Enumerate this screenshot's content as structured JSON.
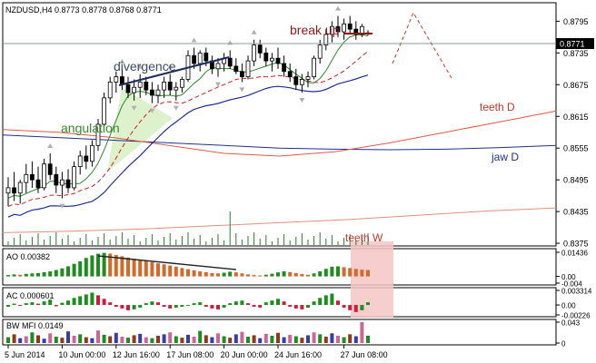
{
  "chart_data": [
    {
      "type": "candlestick",
      "panel": "price",
      "title": "NZDUSD,H4",
      "ohlc_header": [
        "0.8773",
        "0.8778",
        "0.8768",
        "0.8771"
      ],
      "current_price": "0.8771",
      "ylim": [
        0.837,
        0.883
      ],
      "y_ticks": [
        "0.8795",
        "0.8735",
        "0.8675",
        "0.8615",
        "0.8555",
        "0.8495",
        "0.8435",
        "0.8375"
      ],
      "annotations": [
        {
          "text": "break up",
          "color": "#8b1a1a"
        },
        {
          "text": "divergence",
          "color": "#3b4a6b"
        },
        {
          "text": "angulation",
          "color": "#3a8a2a"
        },
        {
          "text": "teeth D",
          "color": "#c0392b"
        },
        {
          "text": "jaw D",
          "color": "#1f2f8f"
        },
        {
          "text": "teeth W",
          "color": "#c0392b"
        }
      ],
      "candles": [
        {
          "o": 0.847,
          "h": 0.85,
          "l": 0.8445,
          "c": 0.848
        },
        {
          "o": 0.848,
          "h": 0.851,
          "l": 0.8455,
          "c": 0.847
        },
        {
          "o": 0.847,
          "h": 0.8495,
          "l": 0.845,
          "c": 0.849
        },
        {
          "o": 0.849,
          "h": 0.8525,
          "l": 0.847,
          "c": 0.8505
        },
        {
          "o": 0.8505,
          "h": 0.853,
          "l": 0.848,
          "c": 0.8495
        },
        {
          "o": 0.8495,
          "h": 0.852,
          "l": 0.847,
          "c": 0.848
        },
        {
          "o": 0.848,
          "h": 0.8535,
          "l": 0.8475,
          "c": 0.8525
        },
        {
          "o": 0.8525,
          "h": 0.8545,
          "l": 0.8495,
          "c": 0.8505
        },
        {
          "o": 0.8505,
          "h": 0.852,
          "l": 0.847,
          "c": 0.8485
        },
        {
          "o": 0.8485,
          "h": 0.851,
          "l": 0.846,
          "c": 0.8495
        },
        {
          "o": 0.8495,
          "h": 0.8515,
          "l": 0.847,
          "c": 0.848
        },
        {
          "o": 0.848,
          "h": 0.853,
          "l": 0.8475,
          "c": 0.852
        },
        {
          "o": 0.852,
          "h": 0.855,
          "l": 0.8505,
          "c": 0.854
        },
        {
          "o": 0.854,
          "h": 0.856,
          "l": 0.8515,
          "c": 0.853
        },
        {
          "o": 0.853,
          "h": 0.857,
          "l": 0.852,
          "c": 0.856
        },
        {
          "o": 0.856,
          "h": 0.861,
          "l": 0.855,
          "c": 0.86
        },
        {
          "o": 0.86,
          "h": 0.866,
          "l": 0.8595,
          "c": 0.865
        },
        {
          "o": 0.865,
          "h": 0.869,
          "l": 0.864,
          "c": 0.868
        },
        {
          "o": 0.868,
          "h": 0.87,
          "l": 0.866,
          "c": 0.869
        },
        {
          "o": 0.869,
          "h": 0.8705,
          "l": 0.8665,
          "c": 0.8675
        },
        {
          "o": 0.8675,
          "h": 0.869,
          "l": 0.865,
          "c": 0.866
        },
        {
          "o": 0.866,
          "h": 0.8685,
          "l": 0.8645,
          "c": 0.867
        },
        {
          "o": 0.867,
          "h": 0.8695,
          "l": 0.865,
          "c": 0.868
        },
        {
          "o": 0.868,
          "h": 0.869,
          "l": 0.8655,
          "c": 0.8665
        },
        {
          "o": 0.8665,
          "h": 0.868,
          "l": 0.864,
          "c": 0.8655
        },
        {
          "o": 0.8655,
          "h": 0.8675,
          "l": 0.864,
          "c": 0.8665
        },
        {
          "o": 0.8665,
          "h": 0.869,
          "l": 0.865,
          "c": 0.868
        },
        {
          "o": 0.868,
          "h": 0.8695,
          "l": 0.8655,
          "c": 0.8665
        },
        {
          "o": 0.8665,
          "h": 0.868,
          "l": 0.8645,
          "c": 0.867
        },
        {
          "o": 0.867,
          "h": 0.869,
          "l": 0.866,
          "c": 0.8685
        },
        {
          "o": 0.8685,
          "h": 0.874,
          "l": 0.868,
          "c": 0.873
        },
        {
          "o": 0.873,
          "h": 0.8745,
          "l": 0.8705,
          "c": 0.8715
        },
        {
          "o": 0.8715,
          "h": 0.874,
          "l": 0.87,
          "c": 0.8735
        },
        {
          "o": 0.8735,
          "h": 0.8745,
          "l": 0.871,
          "c": 0.872
        },
        {
          "o": 0.872,
          "h": 0.873,
          "l": 0.8695,
          "c": 0.8705
        },
        {
          "o": 0.8705,
          "h": 0.8725,
          "l": 0.869,
          "c": 0.8715
        },
        {
          "o": 0.8715,
          "h": 0.8735,
          "l": 0.87,
          "c": 0.8725
        },
        {
          "o": 0.8725,
          "h": 0.874,
          "l": 0.8705,
          "c": 0.871
        },
        {
          "o": 0.871,
          "h": 0.8725,
          "l": 0.8695,
          "c": 0.87
        },
        {
          "o": 0.87,
          "h": 0.8715,
          "l": 0.868,
          "c": 0.869
        },
        {
          "o": 0.869,
          "h": 0.873,
          "l": 0.8685,
          "c": 0.872
        },
        {
          "o": 0.872,
          "h": 0.876,
          "l": 0.871,
          "c": 0.875
        },
        {
          "o": 0.875,
          "h": 0.876,
          "l": 0.8725,
          "c": 0.8735
        },
        {
          "o": 0.8735,
          "h": 0.8745,
          "l": 0.871,
          "c": 0.872
        },
        {
          "o": 0.872,
          "h": 0.8735,
          "l": 0.87,
          "c": 0.8725
        },
        {
          "o": 0.8725,
          "h": 0.8745,
          "l": 0.8705,
          "c": 0.8715
        },
        {
          "o": 0.8715,
          "h": 0.873,
          "l": 0.869,
          "c": 0.87
        },
        {
          "o": 0.87,
          "h": 0.8715,
          "l": 0.868,
          "c": 0.869
        },
        {
          "o": 0.869,
          "h": 0.8705,
          "l": 0.8665,
          "c": 0.8675
        },
        {
          "o": 0.8675,
          "h": 0.8695,
          "l": 0.866,
          "c": 0.8685
        },
        {
          "o": 0.8685,
          "h": 0.87,
          "l": 0.867,
          "c": 0.869
        },
        {
          "o": 0.869,
          "h": 0.873,
          "l": 0.8685,
          "c": 0.8725
        },
        {
          "o": 0.8725,
          "h": 0.876,
          "l": 0.8715,
          "c": 0.875
        },
        {
          "o": 0.875,
          "h": 0.878,
          "l": 0.874,
          "c": 0.877
        },
        {
          "o": 0.877,
          "h": 0.8795,
          "l": 0.8755,
          "c": 0.8785
        },
        {
          "o": 0.8785,
          "h": 0.8805,
          "l": 0.8765,
          "c": 0.8775
        },
        {
          "o": 0.8775,
          "h": 0.88,
          "l": 0.876,
          "c": 0.879
        },
        {
          "o": 0.879,
          "h": 0.8805,
          "l": 0.877,
          "c": 0.878
        },
        {
          "o": 0.878,
          "h": 0.8795,
          "l": 0.876,
          "c": 0.877
        },
        {
          "o": 0.877,
          "h": 0.879,
          "l": 0.8765,
          "c": 0.8785
        },
        {
          "o": 0.8773,
          "h": 0.8778,
          "l": 0.8768,
          "c": 0.8771
        }
      ],
      "series": [
        {
          "name": "jaw D",
          "color": "#1f2f8f",
          "values": [
            0.858,
            0.8575,
            0.857,
            0.8565,
            0.856,
            0.8555,
            0.8553,
            0.8552,
            0.8553,
            0.8556,
            0.856
          ]
        },
        {
          "name": "teeth D",
          "color": "#e05a4a",
          "values": [
            0.859,
            0.8585,
            0.8575,
            0.856,
            0.8545,
            0.854,
            0.8548,
            0.8565,
            0.8585,
            0.8605,
            0.8625
          ]
        },
        {
          "name": "teeth W",
          "color": "#e09080",
          "values": [
            0.8395,
            0.8398,
            0.8402,
            0.8408,
            0.8414,
            0.842,
            0.8428,
            0.8436,
            0.8442
          ]
        }
      ]
    },
    {
      "type": "bar",
      "panel": "AO",
      "title": "AO 0.00382",
      "y_ticks": [
        "0.01436",
        "0.00",
        "-0.004"
      ],
      "ylim": [
        -0.004,
        0.01436
      ],
      "values": [
        0.0008,
        0.0012,
        0.001,
        0.0015,
        0.0018,
        0.002,
        0.0025,
        0.003,
        0.0038,
        0.0048,
        0.006,
        0.0075,
        0.009,
        0.011,
        0.0125,
        0.0135,
        0.014,
        0.0136,
        0.0128,
        0.012,
        0.0112,
        0.0105,
        0.01,
        0.0092,
        0.0085,
        0.0078,
        0.0072,
        0.0065,
        0.0058,
        0.005,
        0.0043,
        0.0036,
        0.003,
        0.0025,
        0.002,
        0.0018,
        0.0022,
        0.0028,
        0.0024,
        0.0018,
        0.0012,
        0.0008,
        0.0006,
        0.001,
        0.0016,
        0.0024,
        0.003,
        0.0026,
        0.002,
        0.0014,
        0.001,
        0.0018,
        0.003,
        0.0045,
        0.0058,
        0.006,
        0.0055,
        0.005,
        0.0045,
        0.004,
        0.0038
      ]
    },
    {
      "type": "bar",
      "panel": "AC",
      "title": "AC 0.000601",
      "y_ticks": [
        "0.003314",
        "0.00",
        "-0.00226"
      ],
      "ylim": [
        -0.00226,
        0.003314
      ],
      "values": [
        -0.0004,
        0.0003,
        -0.0002,
        0.0004,
        0.0006,
        0.0003,
        0.0008,
        0.0012,
        -0.0003,
        0.0005,
        0.001,
        0.0016,
        0.002,
        0.0024,
        0.0028,
        0.0022,
        0.0014,
        0.0006,
        -0.0004,
        -0.0008,
        -0.0012,
        -0.001,
        -0.0006,
        0.0004,
        0.0008,
        0.0006,
        -0.0004,
        -0.0008,
        -0.0006,
        -0.0004,
        -0.0002,
        0.0004,
        0.0006,
        -0.0004,
        -0.0008,
        -0.001,
        -0.0006,
        0.0004,
        0.0008,
        0.001,
        0.0004,
        -0.0004,
        -0.0006,
        0.0006,
        0.001,
        0.0014,
        0.0008,
        -0.0004,
        -0.0008,
        -0.001,
        -0.0006,
        0.0008,
        0.0016,
        0.0022,
        0.0026,
        0.001,
        -0.0006,
        -0.0012,
        -0.0016,
        -0.0012,
        0.0006
      ]
    },
    {
      "type": "bar",
      "panel": "BW MFI",
      "title": "BW MFI 0.0149",
      "y_ticks": [
        "0.043",
        "0"
      ],
      "ylim": [
        0,
        0.043
      ],
      "values": [
        0.012,
        0.018,
        0.01,
        0.014,
        0.022,
        0.016,
        0.009,
        0.02,
        0.013,
        0.011,
        0.024,
        0.015,
        0.018,
        0.012,
        0.01,
        0.026,
        0.017,
        0.014,
        0.021,
        0.013,
        0.011,
        0.016,
        0.019,
        0.012,
        0.01,
        0.015,
        0.018,
        0.022,
        0.014,
        0.011,
        0.017,
        0.013,
        0.025,
        0.016,
        0.012,
        0.02,
        0.014,
        0.011,
        0.018,
        0.023,
        0.013,
        0.016,
        0.01,
        0.019,
        0.015,
        0.021,
        0.012,
        0.017,
        0.014,
        0.011,
        0.016,
        0.022,
        0.018,
        0.013,
        0.02,
        0.015,
        0.012,
        0.018,
        0.014,
        0.043,
        0.015
      ]
    }
  ],
  "x_ticks": [
    "5 Jun 2014",
    "10 Jun 00:00",
    "12 Jun 16:00",
    "17 Jun 08:00",
    "20 Jun 00:00",
    "24 Jun 16:00",
    "27 Jun 08:00"
  ]
}
